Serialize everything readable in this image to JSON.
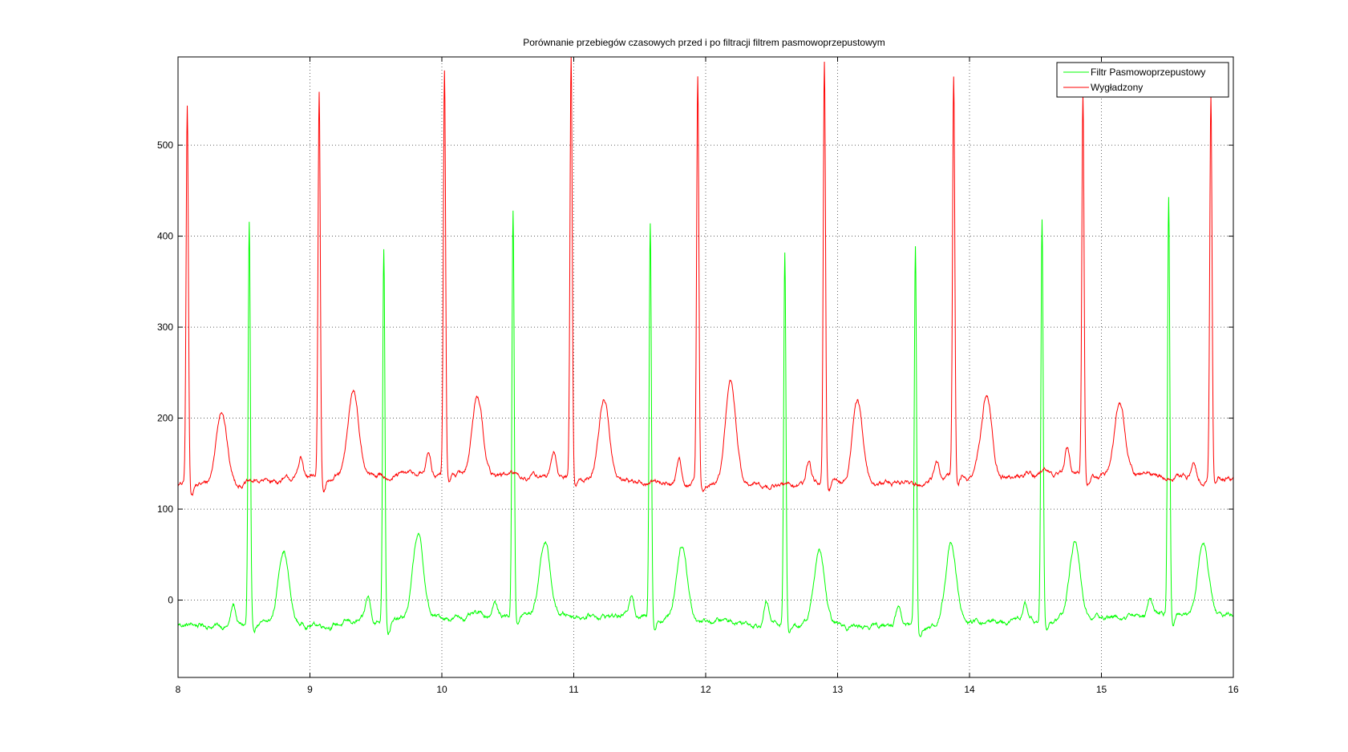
{
  "chart_data": {
    "type": "line",
    "title": "Porównanie przebiegów czasowych przed i po filtracji filtrem pasmowoprzepustowym",
    "xlabel": "",
    "ylabel": "",
    "xlim": [
      8,
      16
    ],
    "ylim": [
      -85,
      597
    ],
    "xticks": [
      8,
      9,
      10,
      11,
      12,
      13,
      14,
      15,
      16
    ],
    "yticks": [
      0,
      100,
      200,
      300,
      400,
      500
    ],
    "grid": true,
    "legend_position": "top-right",
    "series": [
      {
        "name": "Filtr Pasmowoprzepustowy",
        "color": "#00ff00",
        "baseline": -22,
        "r_peaks": [
          {
            "t": 8.54,
            "v": 419
          },
          {
            "t": 9.56,
            "v": 391
          },
          {
            "t": 10.54,
            "v": 425
          },
          {
            "t": 11.58,
            "v": 414
          },
          {
            "t": 12.6,
            "v": 387
          },
          {
            "t": 13.59,
            "v": 398
          },
          {
            "t": 14.55,
            "v": 418
          },
          {
            "t": 15.51,
            "v": 435
          }
        ],
        "t_waves": [
          {
            "t": 8.8,
            "v": 62
          },
          {
            "t": 9.82,
            "v": 70
          },
          {
            "t": 10.78,
            "v": 60
          },
          {
            "t": 11.82,
            "v": 61
          },
          {
            "t": 12.86,
            "v": 58
          },
          {
            "t": 13.86,
            "v": 69
          },
          {
            "t": 14.8,
            "v": 63
          },
          {
            "t": 15.77,
            "v": 60
          }
        ],
        "p_waves": [
          {
            "t": 8.42,
            "v": 0
          },
          {
            "t": 9.44,
            "v": 3
          },
          {
            "t": 10.4,
            "v": -6
          },
          {
            "t": 11.44,
            "v": 5
          },
          {
            "t": 12.46,
            "v": 2
          },
          {
            "t": 13.46,
            "v": -1
          },
          {
            "t": 14.42,
            "v": -3
          },
          {
            "t": 15.37,
            "v": -3
          }
        ]
      },
      {
        "name": "Wygładzony",
        "color": "#ff0000",
        "baseline": 132,
        "r_peaks": [
          {
            "t": 8.07,
            "v": 546
          },
          {
            "t": 9.07,
            "v": 556
          },
          {
            "t": 10.02,
            "v": 575
          },
          {
            "t": 10.98,
            "v": 597
          },
          {
            "t": 11.94,
            "v": 578
          },
          {
            "t": 12.9,
            "v": 593
          },
          {
            "t": 13.88,
            "v": 571
          },
          {
            "t": 14.86,
            "v": 551
          },
          {
            "t": 15.83,
            "v": 552
          }
        ],
        "t_waves": [
          {
            "t": 8.33,
            "v": 215
          },
          {
            "t": 9.33,
            "v": 227
          },
          {
            "t": 10.27,
            "v": 220
          },
          {
            "t": 11.23,
            "v": 221
          },
          {
            "t": 12.19,
            "v": 244
          },
          {
            "t": 13.15,
            "v": 223
          },
          {
            "t": 14.13,
            "v": 222
          },
          {
            "t": 15.14,
            "v": 212
          }
        ],
        "p_waves": [
          {
            "t": 8.93,
            "v": 156
          },
          {
            "t": 9.9,
            "v": 155
          },
          {
            "t": 10.85,
            "v": 156
          },
          {
            "t": 11.8,
            "v": 158
          },
          {
            "t": 12.78,
            "v": 158
          },
          {
            "t": 13.75,
            "v": 156
          },
          {
            "t": 14.74,
            "v": 160
          },
          {
            "t": 15.7,
            "v": 152
          }
        ]
      }
    ]
  }
}
